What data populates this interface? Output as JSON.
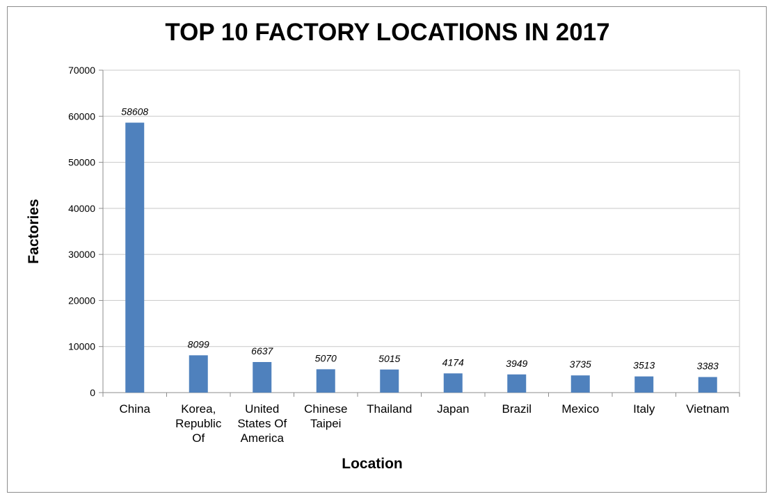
{
  "chart_data": {
    "type": "bar",
    "title": "TOP 10 FACTORY LOCATIONS IN 2017",
    "xlabel": "Location",
    "ylabel": "Factories",
    "categories": [
      [
        "China"
      ],
      [
        "Korea,",
        "Republic",
        "Of"
      ],
      [
        "United",
        "States Of",
        "America"
      ],
      [
        "Chinese",
        "Taipei"
      ],
      [
        "Thailand"
      ],
      [
        "Japan"
      ],
      [
        "Brazil"
      ],
      [
        "Mexico"
      ],
      [
        "Italy"
      ],
      [
        "Vietnam"
      ]
    ],
    "values": [
      58608,
      8099,
      6637,
      5070,
      5015,
      4174,
      3949,
      3735,
      3513,
      3383
    ],
    "data_labels": [
      "58608",
      "8099",
      "6637",
      "5070",
      "5015",
      "4174",
      "3949",
      "3735",
      "3513",
      "3383"
    ],
    "ylim": [
      0,
      70000
    ],
    "y_ticks": [
      0,
      10000,
      20000,
      30000,
      40000,
      50000,
      60000,
      70000
    ],
    "y_tick_labels": [
      "0",
      "10000",
      "20000",
      "30000",
      "40000",
      "50000",
      "60000",
      "70000"
    ],
    "grid": true,
    "bar_color": "#4f81bd",
    "grid_color": "#c8c8c8"
  }
}
